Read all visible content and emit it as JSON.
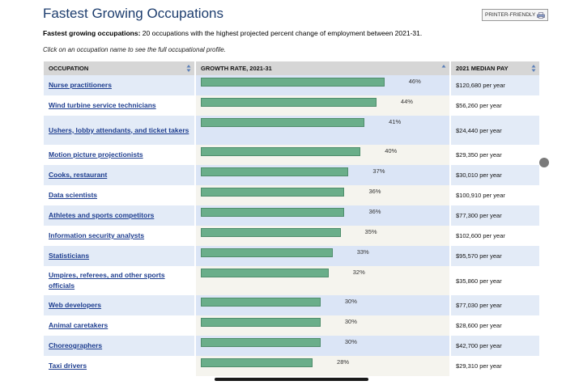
{
  "page": {
    "title": "Fastest Growing Occupations",
    "printer_label": "PRINTER-FRIENDLY",
    "intro_bold": "Fastest growing occupations:",
    "intro_text": " 20 occupations with the highest projected percent change of employment between 2021-31.",
    "hint": "Click on an occupation name to see the full occupational profile."
  },
  "table": {
    "headers": [
      "OCCUPATION",
      "GROWTH RATE, 2021-31",
      "2021 MEDIAN PAY"
    ],
    "rows": [
      {
        "occupation": "Nurse practitioners",
        "rate": 46,
        "rate_label": "46%",
        "pay": "$120,680 per year"
      },
      {
        "occupation": "Wind turbine service technicians",
        "rate": 44,
        "rate_label": "44%",
        "pay": "$56,260 per year"
      },
      {
        "occupation": "Ushers, lobby attendants, and ticket takers",
        "rate": 41,
        "rate_label": "41%",
        "pay": "$24,440 per year"
      },
      {
        "occupation": "Motion picture projectionists",
        "rate": 40,
        "rate_label": "40%",
        "pay": "$29,350 per year"
      },
      {
        "occupation": "Cooks, restaurant",
        "rate": 37,
        "rate_label": "37%",
        "pay": "$30,010 per year"
      },
      {
        "occupation": "Data scientists",
        "rate": 36,
        "rate_label": "36%",
        "pay": "$100,910 per year"
      },
      {
        "occupation": "Athletes and sports competitors",
        "rate": 36,
        "rate_label": "36%",
        "pay": "$77,300 per year"
      },
      {
        "occupation": "Information security analysts",
        "rate": 35,
        "rate_label": "35%",
        "pay": "$102,600 per year"
      },
      {
        "occupation": "Statisticians",
        "rate": 33,
        "rate_label": "33%",
        "pay": "$95,570 per year"
      },
      {
        "occupation": "Umpires, referees, and other sports officials",
        "rate": 32,
        "rate_label": "32%",
        "pay": "$35,860 per year"
      },
      {
        "occupation": "Web developers",
        "rate": 30,
        "rate_label": "30%",
        "pay": "$77,030 per year"
      },
      {
        "occupation": "Animal caretakers",
        "rate": 30,
        "rate_label": "30%",
        "pay": "$28,600 per year"
      },
      {
        "occupation": "Choreographers",
        "rate": 30,
        "rate_label": "30%",
        "pay": "$42,700 per year"
      },
      {
        "occupation": "Taxi drivers",
        "rate": 28,
        "rate_label": "28%",
        "pay": "$29,310 per year"
      }
    ]
  },
  "colors": {
    "bar": "#6aae8a",
    "link": "#1d3d8f",
    "title": "#1d3d6e",
    "header_bg": "#d6d6d6"
  },
  "icons": {
    "printer": "printer-icon",
    "sort": "sort-icon"
  }
}
